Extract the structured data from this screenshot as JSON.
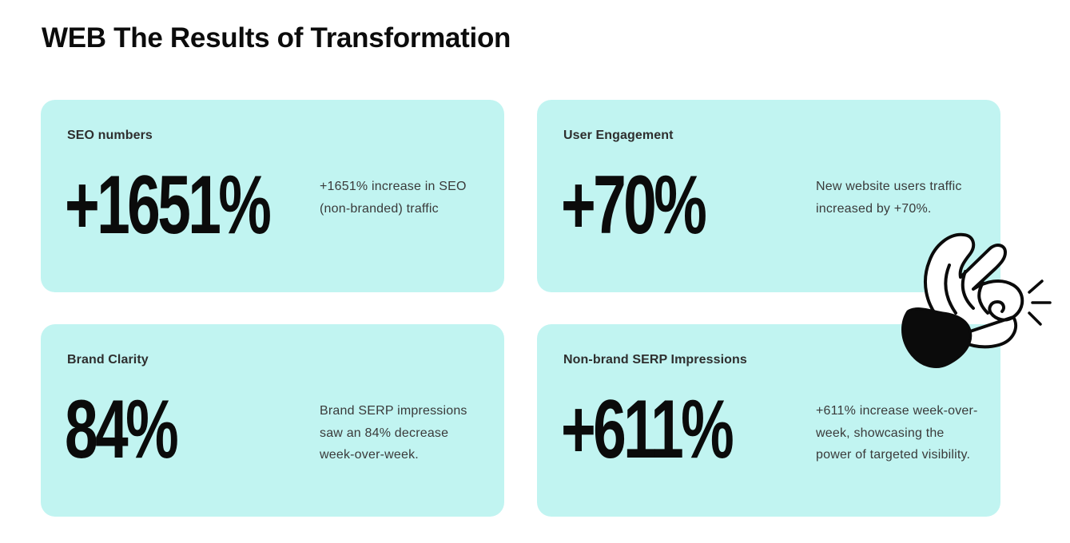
{
  "page": {
    "title": "WEB The Results of Transformation"
  },
  "cards": [
    {
      "label": "SEO numbers",
      "metric": "+1651%",
      "description": "+1651% increase in SEO (non-branded) traffic"
    },
    {
      "label": "User Engagement",
      "metric": "+70%",
      "description": "New website users traffic increased by +70%."
    },
    {
      "label": "Brand Clarity",
      "metric": "84%",
      "description": "Brand SERP impressions saw an 84% decrease week-over-week."
    },
    {
      "label": "Non-brand SERP Impressions",
      "metric": "+611%",
      "description": "+611% increase week-over-week, showcasing the power of targeted visibility."
    }
  ],
  "decoration": {
    "icon": "snapping-hand-icon"
  },
  "colors": {
    "card_background": "#c1f4f1",
    "text_primary": "#0b0b0b",
    "text_secondary": "#3a3a3a",
    "page_background": "#ffffff"
  }
}
